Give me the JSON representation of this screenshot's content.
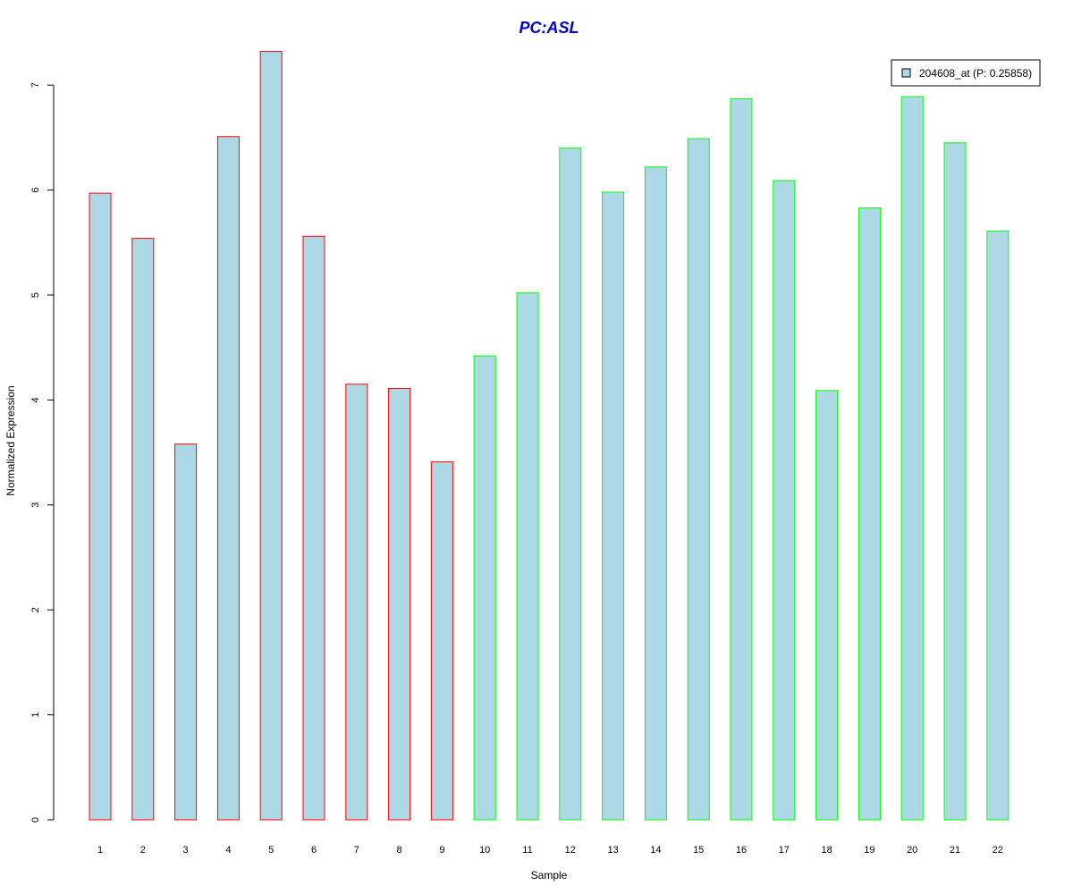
{
  "chart_data": {
    "type": "bar",
    "title": "PC:ASL",
    "xlabel": "Sample",
    "ylabel": "Normalized Expression",
    "categories": [
      "1",
      "2",
      "3",
      "4",
      "5",
      "6",
      "7",
      "8",
      "9",
      "10",
      "11",
      "12",
      "13",
      "14",
      "15",
      "16",
      "17",
      "18",
      "19",
      "20",
      "21",
      "22"
    ],
    "series": [
      {
        "name": "204608_at (P: 0.25858)",
        "values": [
          5.97,
          5.54,
          3.58,
          6.51,
          7.32,
          5.56,
          4.15,
          4.11,
          3.41,
          4.42,
          5.02,
          6.4,
          5.98,
          6.22,
          6.49,
          6.87,
          6.09,
          4.09,
          5.83,
          6.89,
          6.45,
          5.61
        ]
      }
    ],
    "group_of_sample": [
      1,
      1,
      1,
      1,
      1,
      1,
      1,
      1,
      1,
      2,
      2,
      2,
      2,
      2,
      2,
      2,
      2,
      2,
      2,
      2,
      2,
      2
    ],
    "yticks": [
      0,
      1,
      2,
      3,
      4,
      5,
      6,
      7
    ],
    "ylim": [
      0,
      7.32
    ],
    "grid": false,
    "legend_position": "top-right",
    "colors": {
      "title": "#0000cc",
      "bar_fill": "#add8e6",
      "group1_border": "#ff0000",
      "group2_border": "#00ff00",
      "axis": "#000000",
      "legend_border": "#000000"
    }
  }
}
